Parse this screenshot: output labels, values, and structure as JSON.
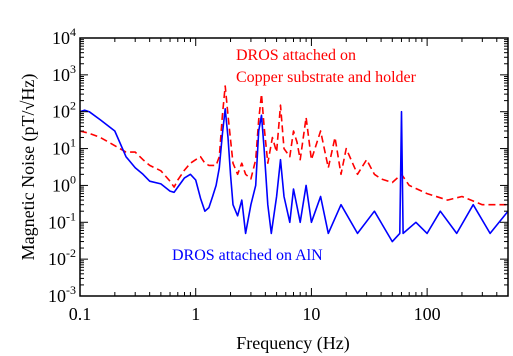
{
  "chart_data": {
    "type": "line",
    "xlabel": "Frequency (Hz)",
    "ylabel": "Magnetic Noise (pT/√Hz)",
    "x_scale": "log",
    "y_scale": "log",
    "xlim": [
      0.1,
      500
    ],
    "ylim": [
      0.001,
      10000
    ],
    "x_ticks": [
      {
        "value": 0.1,
        "label": "0.1"
      },
      {
        "value": 1,
        "label": "1"
      },
      {
        "value": 10,
        "label": "10"
      },
      {
        "value": 100,
        "label": "100"
      }
    ],
    "y_ticks": [
      {
        "value": 0.001,
        "base": "10",
        "exp": "-3"
      },
      {
        "value": 0.01,
        "base": "10",
        "exp": "-2"
      },
      {
        "value": 0.1,
        "base": "10",
        "exp": "-1"
      },
      {
        "value": 1,
        "base": "10",
        "exp": "0"
      },
      {
        "value": 10,
        "base": "10",
        "exp": "1"
      },
      {
        "value": 100,
        "base": "10",
        "exp": "2"
      },
      {
        "value": 1000,
        "base": "10",
        "exp": "3"
      },
      {
        "value": 10000,
        "base": "10",
        "exp": "4"
      }
    ],
    "grid": false,
    "annotations": [
      {
        "lines": [
          "DROS attached on",
          "Copper substrate and holder"
        ],
        "color": "#ff0000"
      },
      {
        "lines": [
          "DROS attached on AlN"
        ],
        "color": "#0000ff"
      }
    ],
    "series": [
      {
        "color": "#ff0000",
        "style": "dashed",
        "points": [
          [
            0.1,
            30
          ],
          [
            0.12,
            26
          ],
          [
            0.15,
            20
          ],
          [
            0.2,
            12
          ],
          [
            0.25,
            8
          ],
          [
            0.3,
            8
          ],
          [
            0.35,
            5
          ],
          [
            0.4,
            3.5
          ],
          [
            0.5,
            2.5
          ],
          [
            0.6,
            1.3
          ],
          [
            0.65,
            0.9
          ],
          [
            0.7,
            1.4
          ],
          [
            0.8,
            2.6
          ],
          [
            0.9,
            4
          ],
          [
            1.0,
            5
          ],
          [
            1.1,
            6
          ],
          [
            1.2,
            4
          ],
          [
            1.3,
            3.5
          ],
          [
            1.5,
            3.5
          ],
          [
            1.6,
            6
          ],
          [
            1.7,
            80
          ],
          [
            1.8,
            500
          ],
          [
            1.9,
            80
          ],
          [
            2.1,
            4
          ],
          [
            2.3,
            2
          ],
          [
            2.5,
            4
          ],
          [
            2.7,
            2
          ],
          [
            3.0,
            1.5
          ],
          [
            3.3,
            5
          ],
          [
            3.5,
            60
          ],
          [
            3.7,
            300
          ],
          [
            3.9,
            40
          ],
          [
            4.2,
            4
          ],
          [
            4.6,
            20
          ],
          [
            5.0,
            8
          ],
          [
            5.4,
            150
          ],
          [
            5.8,
            10
          ],
          [
            6.5,
            6
          ],
          [
            7.0,
            30
          ],
          [
            7.5,
            15
          ],
          [
            8.0,
            5
          ],
          [
            9.0,
            70
          ],
          [
            10,
            5
          ],
          [
            12,
            30
          ],
          [
            14,
            3
          ],
          [
            16,
            20
          ],
          [
            18,
            2
          ],
          [
            20,
            10
          ],
          [
            25,
            2
          ],
          [
            30,
            5
          ],
          [
            35,
            2
          ],
          [
            40,
            1.5
          ],
          [
            50,
            1.2
          ],
          [
            60,
            2
          ],
          [
            70,
            1
          ],
          [
            100,
            0.6
          ],
          [
            150,
            0.4
          ],
          [
            200,
            0.5
          ],
          [
            300,
            0.3
          ],
          [
            500,
            0.3
          ]
        ]
      },
      {
        "color": "#0000ff",
        "style": "solid",
        "points": [
          [
            0.1,
            100
          ],
          [
            0.11,
            110
          ],
          [
            0.12,
            100
          ],
          [
            0.15,
            60
          ],
          [
            0.2,
            30
          ],
          [
            0.25,
            6
          ],
          [
            0.3,
            3
          ],
          [
            0.35,
            2
          ],
          [
            0.4,
            1.3
          ],
          [
            0.5,
            1.1
          ],
          [
            0.6,
            0.7
          ],
          [
            0.65,
            0.65
          ],
          [
            0.7,
            0.9
          ],
          [
            0.8,
            1.6
          ],
          [
            0.9,
            2
          ],
          [
            1.0,
            1.4
          ],
          [
            1.1,
            0.45
          ],
          [
            1.2,
            0.2
          ],
          [
            1.3,
            0.25
          ],
          [
            1.4,
            0.5
          ],
          [
            1.5,
            1
          ],
          [
            1.6,
            3
          ],
          [
            1.7,
            25
          ],
          [
            1.8,
            120
          ],
          [
            1.9,
            20
          ],
          [
            2.0,
            2
          ],
          [
            2.1,
            0.3
          ],
          [
            2.3,
            0.15
          ],
          [
            2.5,
            0.4
          ],
          [
            2.7,
            0.05
          ],
          [
            3.0,
            0.3
          ],
          [
            3.3,
            1
          ],
          [
            3.5,
            30
          ],
          [
            3.7,
            80
          ],
          [
            3.9,
            10
          ],
          [
            4.2,
            0.3
          ],
          [
            4.5,
            0.05
          ],
          [
            5.0,
            0.5
          ],
          [
            5.4,
            5
          ],
          [
            5.8,
            0.5
          ],
          [
            6.5,
            0.1
          ],
          [
            7.0,
            0.8
          ],
          [
            8.0,
            0.1
          ],
          [
            9.0,
            1
          ],
          [
            10,
            0.1
          ],
          [
            12,
            0.5
          ],
          [
            14,
            0.05
          ],
          [
            18,
            0.3
          ],
          [
            25,
            0.05
          ],
          [
            35,
            0.2
          ],
          [
            50,
            0.03
          ],
          [
            58,
            0.05
          ],
          [
            60,
            100
          ],
          [
            62,
            0.05
          ],
          [
            80,
            0.1
          ],
          [
            100,
            0.05
          ],
          [
            130,
            0.2
          ],
          [
            180,
            0.05
          ],
          [
            250,
            0.3
          ],
          [
            350,
            0.05
          ],
          [
            500,
            0.2
          ]
        ]
      }
    ]
  }
}
